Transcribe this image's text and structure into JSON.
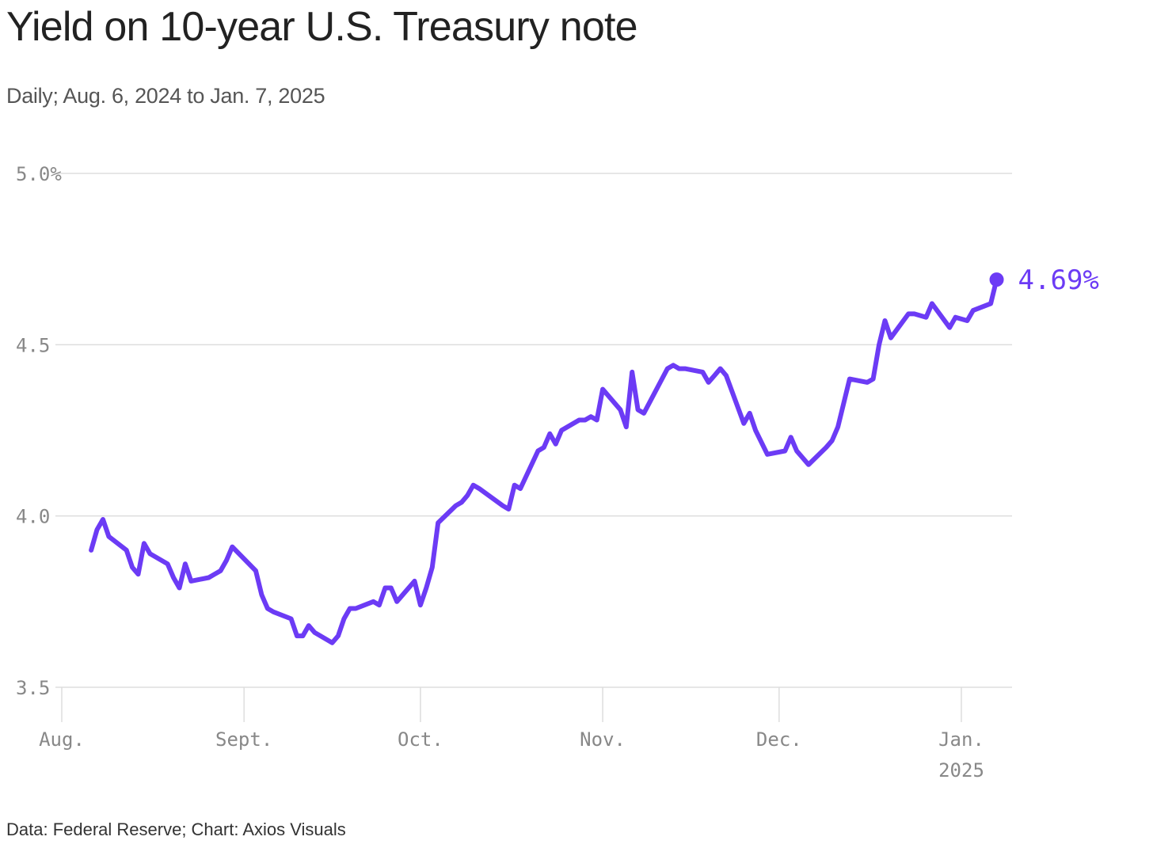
{
  "title": "Yield on 10-year U.S. Treasury note",
  "subtitle": "Daily; Aug. 6, 2024 to Jan. 7, 2025",
  "footer": "Data: Federal Reserve; Chart: Axios Visuals",
  "colors": {
    "line": "#6C3BF5",
    "grid": "#dddddd",
    "tick": "#888888"
  },
  "chart_data": {
    "type": "line",
    "title": "Yield on 10-year U.S. Treasury note",
    "subtitle": "Daily; Aug. 6, 2024 to Jan. 7, 2025",
    "xlabel": "",
    "ylabel": "",
    "ylim": [
      3.5,
      5.0
    ],
    "yticks": [
      {
        "value": 5.0,
        "label": "5.0%"
      },
      {
        "value": 4.5,
        "label": "4.5"
      },
      {
        "value": 4.0,
        "label": "4.0"
      },
      {
        "value": 3.5,
        "label": "3.5"
      }
    ],
    "xlim": [
      "2024-08-01",
      "2025-01-09"
    ],
    "xticks": [
      {
        "date": "2024-08-01",
        "label": "Aug."
      },
      {
        "date": "2024-09-01",
        "label": "Sept."
      },
      {
        "date": "2024-10-01",
        "label": "Oct."
      },
      {
        "date": "2024-11-01",
        "label": "Nov."
      },
      {
        "date": "2024-12-01",
        "label": "Dec."
      },
      {
        "date": "2025-01-01",
        "label": "Jan.",
        "sublabel": "2025"
      }
    ],
    "grid": true,
    "end_label": "4.69%",
    "series": [
      {
        "points": [
          [
            "2024-08-06",
            3.9
          ],
          [
            "2024-08-07",
            3.96
          ],
          [
            "2024-08-08",
            3.99
          ],
          [
            "2024-08-09",
            3.94
          ],
          [
            "2024-08-12",
            3.9
          ],
          [
            "2024-08-13",
            3.85
          ],
          [
            "2024-08-14",
            3.83
          ],
          [
            "2024-08-15",
            3.92
          ],
          [
            "2024-08-16",
            3.89
          ],
          [
            "2024-08-19",
            3.86
          ],
          [
            "2024-08-20",
            3.82
          ],
          [
            "2024-08-21",
            3.79
          ],
          [
            "2024-08-22",
            3.86
          ],
          [
            "2024-08-23",
            3.81
          ],
          [
            "2024-08-26",
            3.82
          ],
          [
            "2024-08-27",
            3.83
          ],
          [
            "2024-08-28",
            3.84
          ],
          [
            "2024-08-29",
            3.87
          ],
          [
            "2024-08-30",
            3.91
          ],
          [
            "2024-09-03",
            3.84
          ],
          [
            "2024-09-04",
            3.77
          ],
          [
            "2024-09-05",
            3.73
          ],
          [
            "2024-09-06",
            3.72
          ],
          [
            "2024-09-09",
            3.7
          ],
          [
            "2024-09-10",
            3.65
          ],
          [
            "2024-09-11",
            3.65
          ],
          [
            "2024-09-12",
            3.68
          ],
          [
            "2024-09-13",
            3.66
          ],
          [
            "2024-09-16",
            3.63
          ],
          [
            "2024-09-17",
            3.65
          ],
          [
            "2024-09-18",
            3.7
          ],
          [
            "2024-09-19",
            3.73
          ],
          [
            "2024-09-20",
            3.73
          ],
          [
            "2024-09-23",
            3.75
          ],
          [
            "2024-09-24",
            3.74
          ],
          [
            "2024-09-25",
            3.79
          ],
          [
            "2024-09-26",
            3.79
          ],
          [
            "2024-09-27",
            3.75
          ],
          [
            "2024-09-30",
            3.81
          ],
          [
            "2024-10-01",
            3.74
          ],
          [
            "2024-10-02",
            3.79
          ],
          [
            "2024-10-03",
            3.85
          ],
          [
            "2024-10-04",
            3.98
          ],
          [
            "2024-10-07",
            4.03
          ],
          [
            "2024-10-08",
            4.04
          ],
          [
            "2024-10-09",
            4.06
          ],
          [
            "2024-10-10",
            4.09
          ],
          [
            "2024-10-11",
            4.08
          ],
          [
            "2024-10-15",
            4.03
          ],
          [
            "2024-10-16",
            4.02
          ],
          [
            "2024-10-17",
            4.09
          ],
          [
            "2024-10-18",
            4.08
          ],
          [
            "2024-10-21",
            4.19
          ],
          [
            "2024-10-22",
            4.2
          ],
          [
            "2024-10-23",
            4.24
          ],
          [
            "2024-10-24",
            4.21
          ],
          [
            "2024-10-25",
            4.25
          ],
          [
            "2024-10-28",
            4.28
          ],
          [
            "2024-10-29",
            4.28
          ],
          [
            "2024-10-30",
            4.29
          ],
          [
            "2024-10-31",
            4.28
          ],
          [
            "2024-11-01",
            4.37
          ],
          [
            "2024-11-04",
            4.31
          ],
          [
            "2024-11-05",
            4.26
          ],
          [
            "2024-11-06",
            4.42
          ],
          [
            "2024-11-07",
            4.31
          ],
          [
            "2024-11-08",
            4.3
          ],
          [
            "2024-11-12",
            4.43
          ],
          [
            "2024-11-13",
            4.44
          ],
          [
            "2024-11-14",
            4.43
          ],
          [
            "2024-11-15",
            4.43
          ],
          [
            "2024-11-18",
            4.42
          ],
          [
            "2024-11-19",
            4.39
          ],
          [
            "2024-11-20",
            4.41
          ],
          [
            "2024-11-21",
            4.43
          ],
          [
            "2024-11-22",
            4.41
          ],
          [
            "2024-11-25",
            4.27
          ],
          [
            "2024-11-26",
            4.3
          ],
          [
            "2024-11-27",
            4.25
          ],
          [
            "2024-11-29",
            4.18
          ],
          [
            "2024-12-02",
            4.19
          ],
          [
            "2024-12-03",
            4.23
          ],
          [
            "2024-12-04",
            4.19
          ],
          [
            "2024-12-05",
            4.17
          ],
          [
            "2024-12-06",
            4.15
          ],
          [
            "2024-12-09",
            4.2
          ],
          [
            "2024-12-10",
            4.22
          ],
          [
            "2024-12-11",
            4.26
          ],
          [
            "2024-12-12",
            4.33
          ],
          [
            "2024-12-13",
            4.4
          ],
          [
            "2024-12-16",
            4.39
          ],
          [
            "2024-12-17",
            4.4
          ],
          [
            "2024-12-18",
            4.5
          ],
          [
            "2024-12-19",
            4.57
          ],
          [
            "2024-12-20",
            4.52
          ],
          [
            "2024-12-23",
            4.59
          ],
          [
            "2024-12-24",
            4.59
          ],
          [
            "2024-12-26",
            4.58
          ],
          [
            "2024-12-27",
            4.62
          ],
          [
            "2024-12-30",
            4.55
          ],
          [
            "2024-12-31",
            4.58
          ],
          [
            "2025-01-02",
            4.57
          ],
          [
            "2025-01-03",
            4.6
          ],
          [
            "2025-01-06",
            4.62
          ],
          [
            "2025-01-07",
            4.69
          ]
        ]
      }
    ]
  }
}
